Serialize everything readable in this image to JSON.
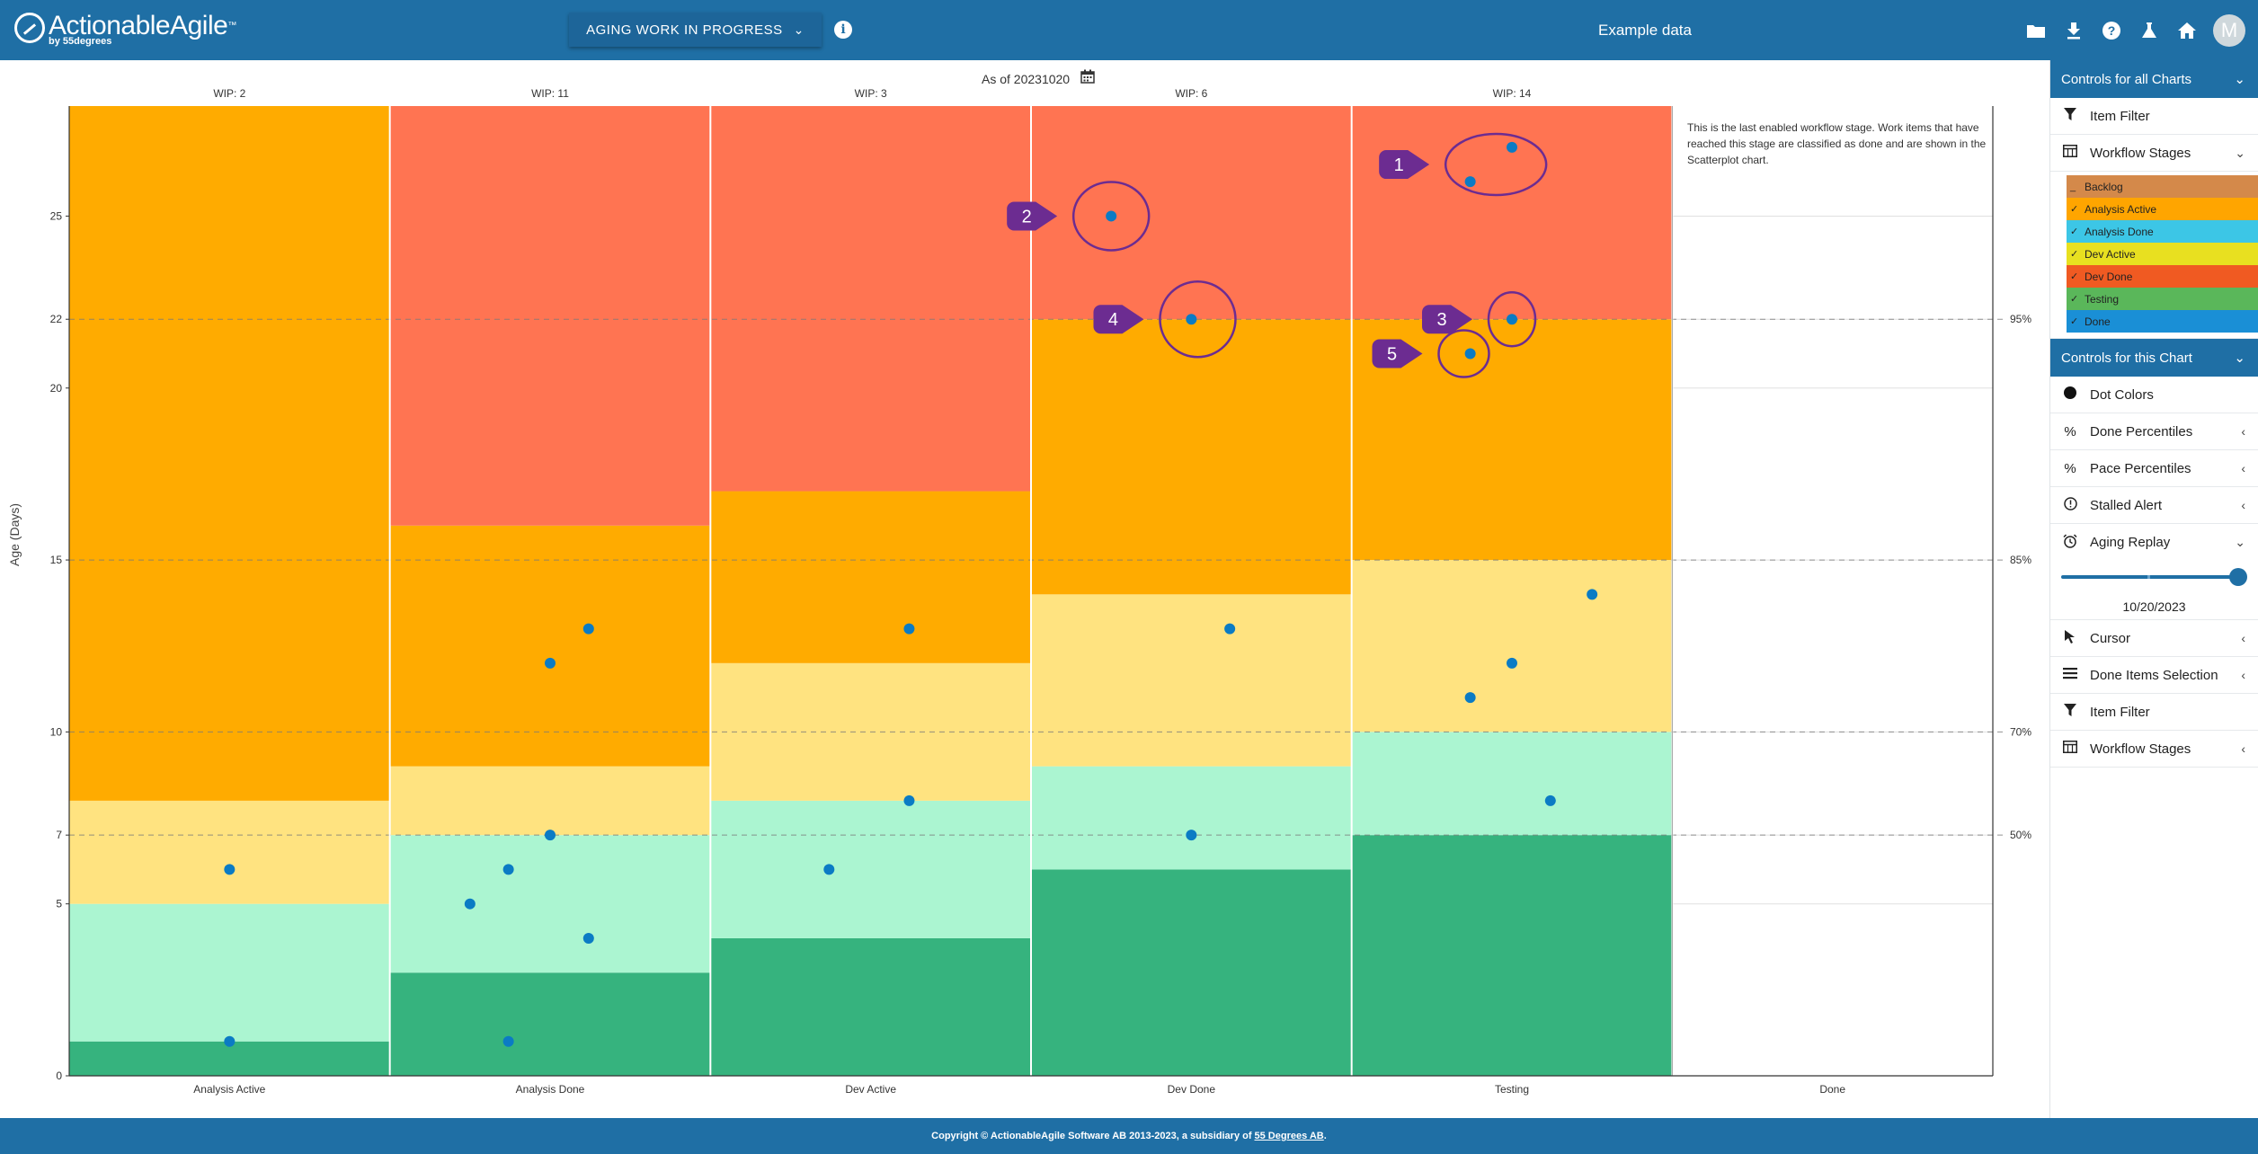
{
  "header": {
    "logo_text": "ActionableAgile",
    "logo_tm": "™",
    "logo_sub": "by 55degrees",
    "view_label": "AGING WORK IN PROGRESS",
    "dataset_name": "Example data",
    "avatar_initial": "M"
  },
  "chart": {
    "as_of": "As of 20231020",
    "y_axis_title": "Age (Days)",
    "done_note": "This is the last enabled workflow stage. Work items that have reached this stage are classified as done and are shown in the Scatterplot chart."
  },
  "chart_data": {
    "type": "scatter",
    "ylabel": "Age (Days)",
    "ylim": [
      0,
      28.2
    ],
    "y_ticks": [
      0,
      5,
      7,
      10,
      15,
      20,
      22,
      25
    ],
    "percentile_lines": [
      {
        "label": "50%",
        "value": 7
      },
      {
        "label": "70%",
        "value": 10
      },
      {
        "label": "85%",
        "value": 15
      },
      {
        "label": "95%",
        "value": 22
      }
    ],
    "stages": [
      {
        "name": "Analysis Active",
        "wip_label": "WIP: 2",
        "bands": [
          1,
          5,
          8
        ],
        "points": [
          [
            0.5,
            1
          ],
          [
            0.5,
            6
          ]
        ]
      },
      {
        "name": "Analysis Done",
        "wip_label": "WIP: 11",
        "bands": [
          3,
          7,
          9,
          16
        ],
        "points": [
          [
            0.37,
            1
          ],
          [
            0.62,
            4
          ],
          [
            0.25,
            5
          ],
          [
            0.37,
            6
          ],
          [
            0.5,
            7
          ],
          [
            0.5,
            12
          ],
          [
            0.62,
            13
          ]
        ]
      },
      {
        "name": "Dev Active",
        "wip_label": "WIP: 3",
        "bands": [
          4,
          8,
          12,
          17
        ],
        "points": [
          [
            0.37,
            6
          ],
          [
            0.62,
            8
          ],
          [
            0.62,
            13
          ]
        ]
      },
      {
        "name": "Dev Done",
        "wip_label": "WIP: 6",
        "bands": [
          6,
          9,
          14,
          22
        ],
        "points": [
          [
            0.5,
            7
          ],
          [
            0.62,
            13
          ],
          [
            0.5,
            22
          ],
          [
            0.25,
            25
          ]
        ]
      },
      {
        "name": "Testing",
        "wip_label": "WIP: 14",
        "bands": [
          7,
          10,
          15,
          22
        ],
        "points": [
          [
            0.62,
            8
          ],
          [
            0.37,
            11
          ],
          [
            0.5,
            12
          ],
          [
            0.75,
            14
          ],
          [
            0.37,
            21
          ],
          [
            0.5,
            22
          ],
          [
            0.37,
            26
          ],
          [
            0.5,
            27
          ]
        ]
      },
      {
        "name": "Done",
        "wip_label": "",
        "bands": [],
        "points": []
      }
    ],
    "band_colors": [
      "#36b37e",
      "#abf5d1",
      "#ffe380",
      "#ffab00",
      "#ff7452"
    ],
    "dot_color": "#0b7bc4",
    "annotations": [
      {
        "label": "1",
        "stage": 4,
        "x": 0.45,
        "y": 26.5
      },
      {
        "label": "2",
        "stage": 3,
        "x": 0.25,
        "y": 25
      },
      {
        "label": "3",
        "stage": 4,
        "x": 0.5,
        "y": 22
      },
      {
        "label": "4",
        "stage": 3,
        "x": 0.52,
        "y": 22
      },
      {
        "label": "5",
        "stage": 4,
        "x": 0.35,
        "y": 21
      }
    ],
    "annotation_color": "#6c2c91"
  },
  "sidebar": {
    "all_charts_title": "Controls for all Charts",
    "item_filter": "Item Filter",
    "workflow_stages": "Workflow Stages",
    "stage_legend": [
      {
        "name": "Backlog",
        "color": "#d4894a",
        "checked": "_"
      },
      {
        "name": "Analysis Active",
        "color": "#ffa500",
        "checked": "✓"
      },
      {
        "name": "Analysis Done",
        "color": "#3cc6e6",
        "checked": "✓"
      },
      {
        "name": "Dev Active",
        "color": "#e8e020",
        "checked": "✓"
      },
      {
        "name": "Dev Done",
        "color": "#f05a22",
        "checked": "✓"
      },
      {
        "name": "Testing",
        "color": "#5ab75a",
        "checked": "✓"
      },
      {
        "name": "Done",
        "color": "#1a8fd6",
        "checked": "✓"
      }
    ],
    "this_chart_title": "Controls for this Chart",
    "dot_colors": "Dot Colors",
    "done_percentiles": "Done Percentiles",
    "pace_percentiles": "Pace Percentiles",
    "stalled_alert": "Stalled Alert",
    "aging_replay": "Aging Replay",
    "replay_date": "10/20/2023",
    "replay_position": 1.0,
    "cursor": "Cursor",
    "done_items_selection": "Done Items Selection",
    "item_filter_2": "Item Filter",
    "workflow_stages_2": "Workflow Stages"
  },
  "footer": {
    "text": "Copyright © ActionableAgile Software AB 2013-2023, a subsidiary of",
    "link": "55 Degrees AB",
    "end": "."
  }
}
